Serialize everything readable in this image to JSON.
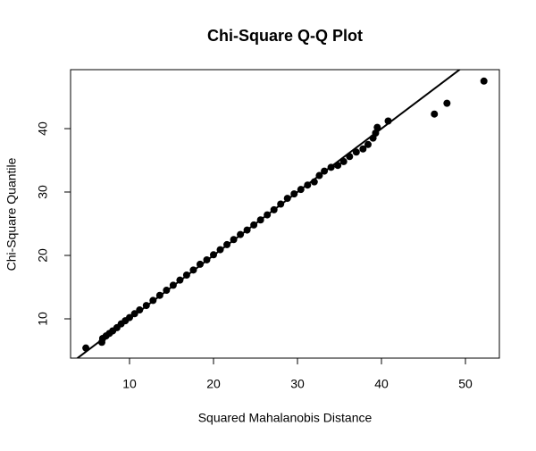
{
  "chart_data": {
    "type": "scatter",
    "title": "Chi-Square Q-Q Plot",
    "xlabel": "Squared Mahalanobis Distance",
    "ylabel": "Chi-Square Quantile",
    "x": [
      4.8,
      6.7,
      6.8,
      7.2,
      7.6,
      8.0,
      8.5,
      9.0,
      9.5,
      10,
      10.6,
      11.2,
      12,
      12.8,
      13.6,
      14.4,
      15.2,
      16,
      16.8,
      17.6,
      18.4,
      19.2,
      20,
      20.8,
      21.6,
      22.4,
      23.2,
      24,
      24.8,
      25.6,
      26.4,
      27.2,
      28,
      28.8,
      29.6,
      30.4,
      31.2,
      32,
      32.6,
      33.2,
      34,
      34.8,
      35.5,
      36.2,
      37,
      37.8,
      38.4,
      39,
      39.3,
      39.5,
      40.8,
      46.3,
      47.8,
      52.2
    ],
    "values": [
      5.4,
      6.3,
      6.9,
      7.3,
      7.7,
      8.1,
      8.6,
      9.2,
      9.7,
      10.2,
      10.8,
      11.4,
      12.1,
      12.9,
      13.7,
      14.5,
      15.3,
      16.1,
      16.9,
      17.7,
      18.6,
      19.3,
      20.1,
      20.9,
      21.7,
      22.5,
      23.3,
      24,
      24.8,
      25.6,
      26.4,
      27.2,
      28.1,
      29,
      29.7,
      30.4,
      31.1,
      31.6,
      32.6,
      33.3,
      33.9,
      34.2,
      34.8,
      35.6,
      36.3,
      36.8,
      37.5,
      38.5,
      39.3,
      40.2,
      41.2,
      42.3,
      44,
      47.5
    ],
    "color": "#000000",
    "xlim": [
      2.98,
      54.04
    ],
    "ylim": [
      3.8,
      49.3
    ],
    "xticks": [
      10,
      20,
      30,
      40,
      50
    ],
    "yticks": [
      10,
      20,
      30,
      40
    ],
    "reference_line": {
      "intercept": 0,
      "slope": 1
    }
  }
}
